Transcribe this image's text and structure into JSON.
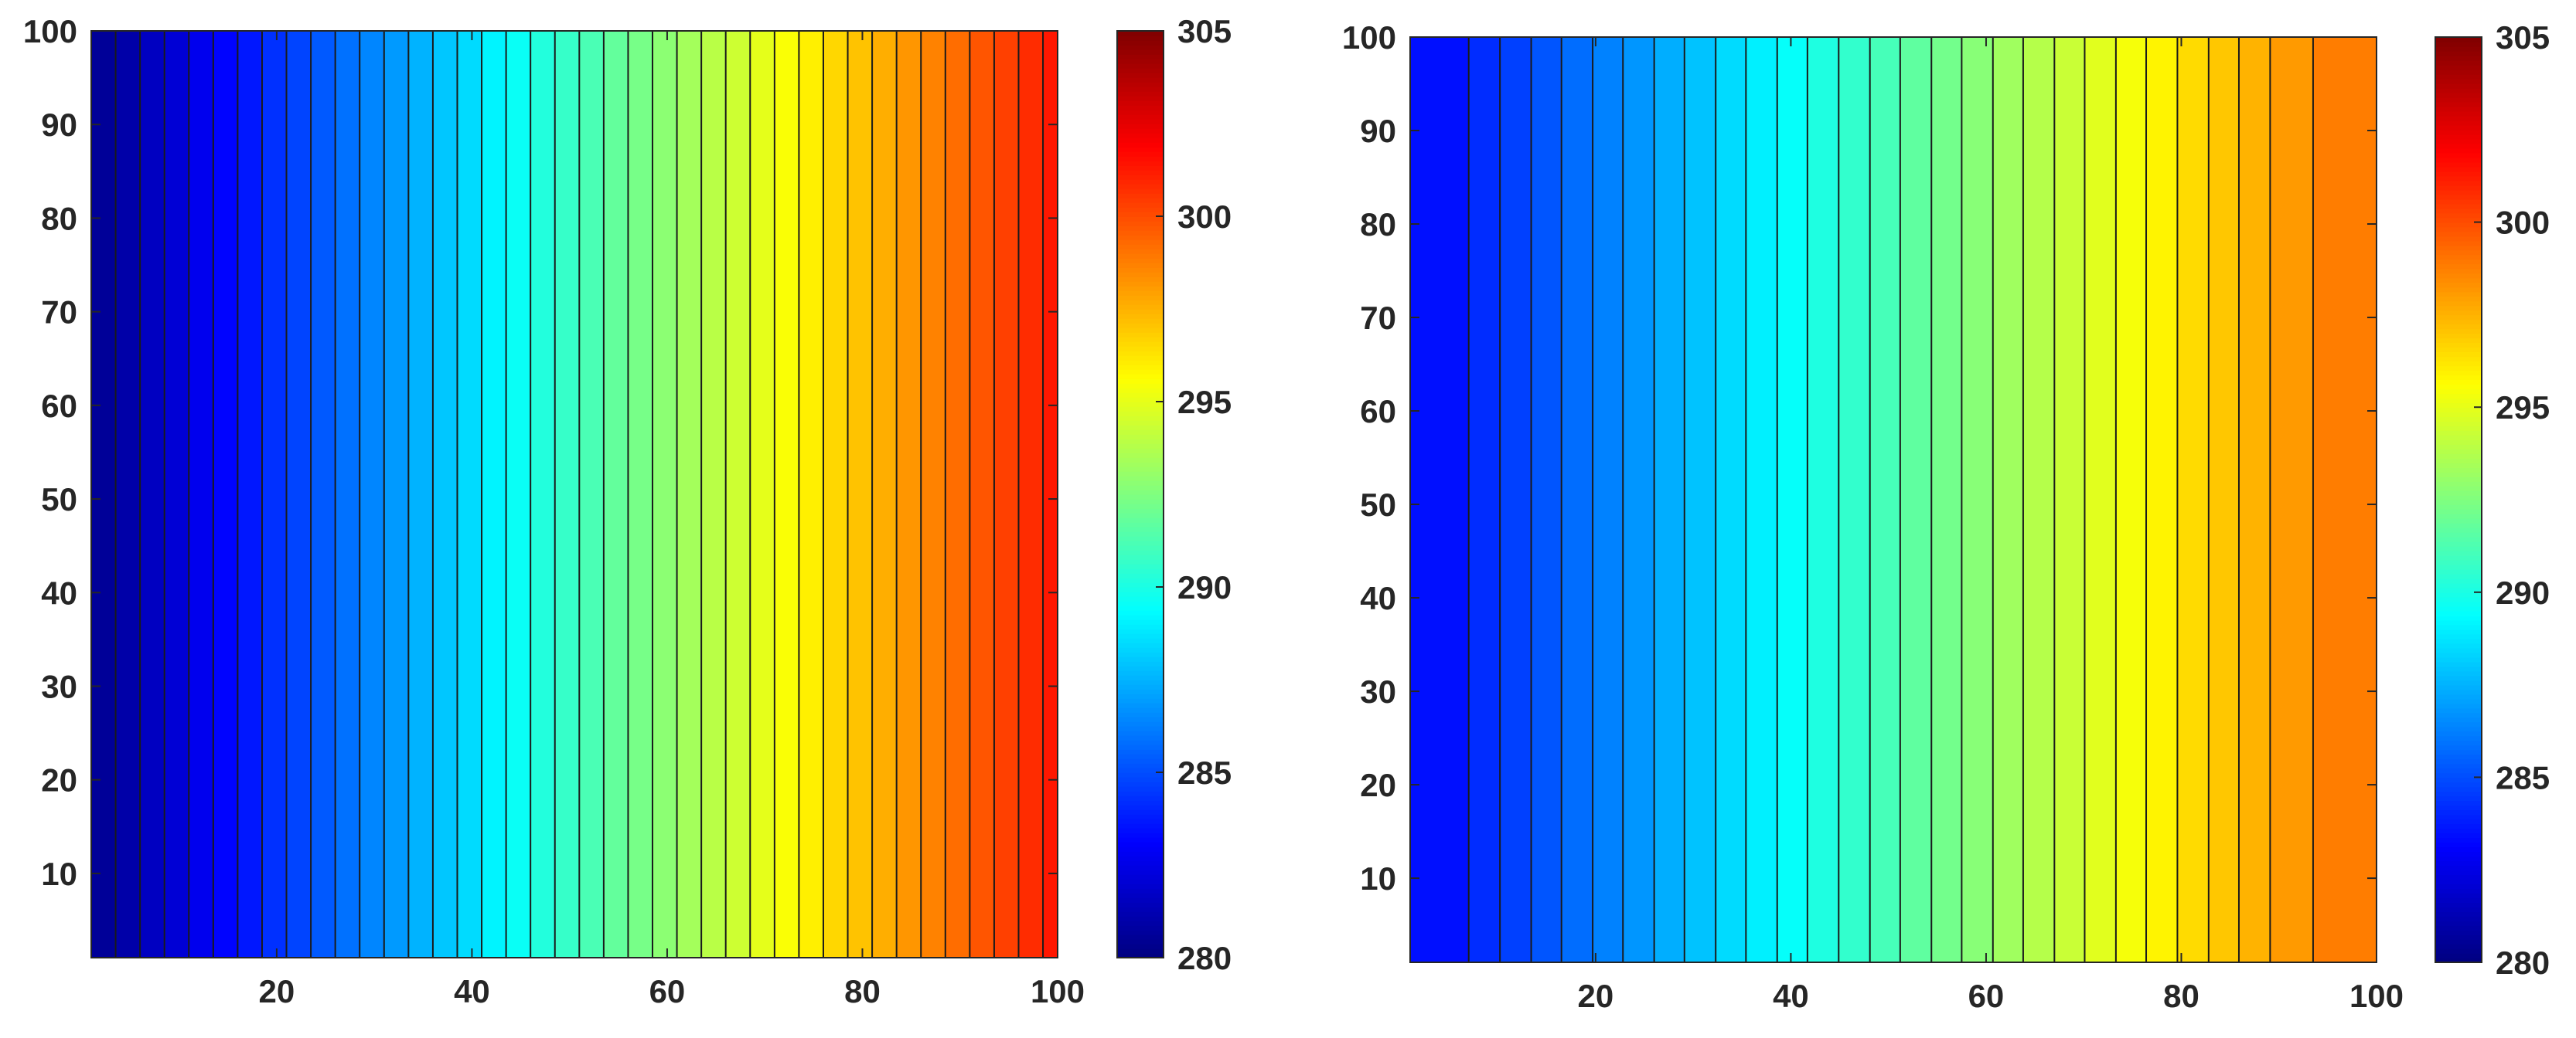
{
  "chart_data": [
    {
      "type": "heatmap",
      "title": "",
      "xlabel": "",
      "ylabel": "",
      "xlim": [
        1,
        100
      ],
      "ylim": [
        1,
        100
      ],
      "x_ticks": [
        "20",
        "40",
        "60",
        "80",
        "100"
      ],
      "y_ticks": [
        "10",
        "20",
        "30",
        "40",
        "50",
        "60",
        "70",
        "80",
        "90",
        "100"
      ],
      "field": "filled contours varying only with x (vertical bands)",
      "band_edges": [
        1.0,
        3.5,
        6.0,
        8.5,
        11.0,
        13.5,
        16.0,
        18.5,
        21.0,
        23.5,
        26.0,
        28.5,
        31.0,
        33.5,
        36.0,
        38.5,
        41.0,
        43.5,
        46.0,
        48.5,
        51.0,
        53.5,
        56.0,
        58.5,
        61.0,
        63.5,
        66.0,
        68.5,
        71.0,
        73.5,
        76.0,
        78.5,
        81.0,
        83.5,
        86.0,
        88.5,
        91.0,
        93.5,
        96.0,
        98.5,
        100.0
      ],
      "band_values": [
        280.6,
        281.0,
        281.6,
        282.1,
        282.7,
        283.2,
        283.7,
        284.3,
        284.8,
        285.3,
        285.9,
        286.4,
        286.9,
        287.5,
        288.0,
        288.5,
        289.1,
        289.6,
        290.2,
        290.7,
        291.2,
        291.8,
        292.3,
        292.8,
        293.4,
        293.9,
        294.4,
        295.0,
        295.5,
        296.0,
        296.6,
        297.1,
        297.6,
        298.2,
        298.7,
        299.2,
        299.8,
        300.3,
        300.8,
        301.3
      ],
      "colorbar": {
        "min": 280,
        "max": 305,
        "ticks": [
          "280",
          "285",
          "290",
          "295",
          "300",
          "305"
        ],
        "colormap": "jet"
      }
    },
    {
      "type": "heatmap",
      "title": "",
      "xlabel": "",
      "ylabel": "",
      "xlim": [
        1,
        100
      ],
      "ylim": [
        1,
        100
      ],
      "x_ticks": [
        "20",
        "40",
        "60",
        "80",
        "100"
      ],
      "y_ticks": [
        "10",
        "20",
        "30",
        "40",
        "50",
        "60",
        "70",
        "80",
        "90",
        "100"
      ],
      "field": "filled contours varying only with x (vertical bands)",
      "band_edges": [
        1.0,
        7.0,
        10.2,
        13.4,
        16.5,
        19.7,
        22.8,
        26.0,
        29.1,
        32.3,
        35.4,
        38.6,
        41.7,
        44.9,
        48.1,
        51.2,
        54.4,
        57.5,
        60.7,
        63.8,
        67.0,
        70.1,
        73.3,
        76.4,
        79.6,
        82.8,
        85.9,
        89.1,
        93.5,
        100.0
      ],
      "band_values": [
        283.5,
        284.2,
        284.7,
        285.2,
        285.8,
        286.3,
        286.8,
        287.4,
        287.9,
        288.5,
        289.0,
        289.5,
        290.1,
        290.6,
        291.1,
        291.7,
        292.2,
        292.7,
        293.3,
        293.8,
        294.3,
        294.9,
        295.4,
        295.9,
        296.5,
        297.0,
        297.5,
        298.1,
        298.8
      ],
      "colorbar": {
        "min": 280,
        "max": 305,
        "ticks": [
          "280",
          "285",
          "290",
          "295",
          "300",
          "305"
        ],
        "colormap": "jet"
      }
    }
  ]
}
